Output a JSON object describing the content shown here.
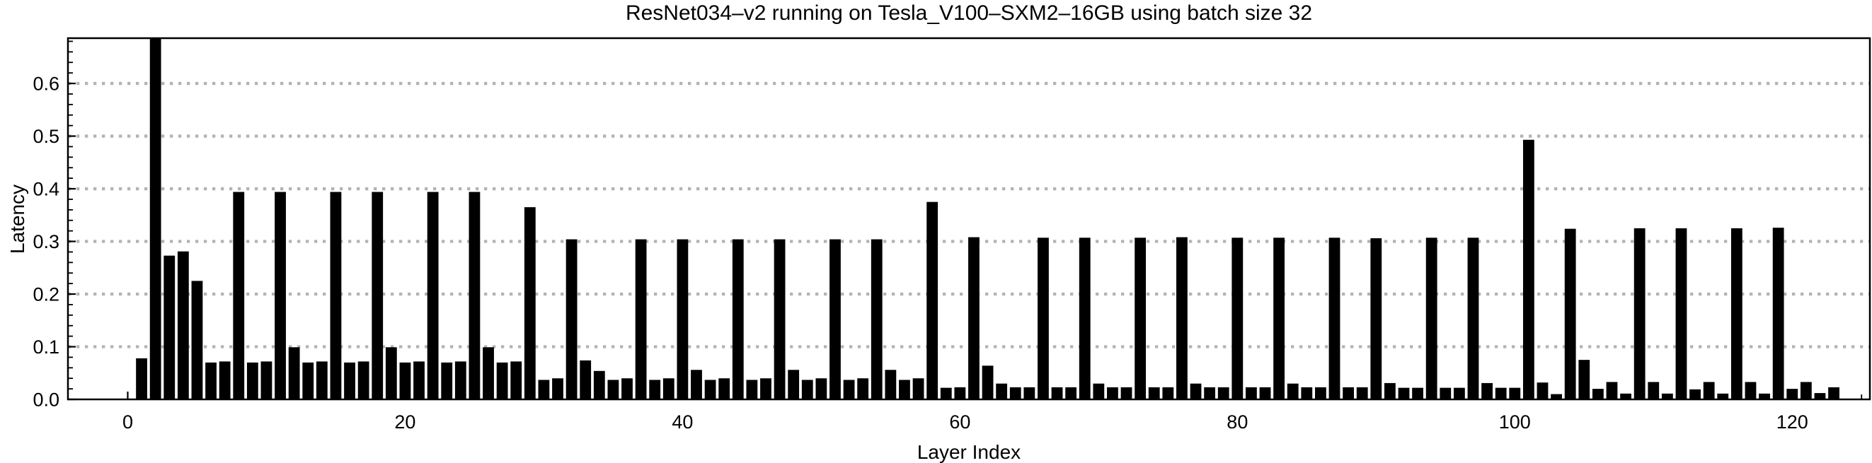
{
  "page": {
    "background": "#ffffff"
  },
  "chart_data": {
    "type": "bar",
    "title": "ResNet034–v2 running on Tesla_V100–SXM2–16GB using batch size 32",
    "xlabel": "Layer Index",
    "ylabel": "Latency",
    "bar_color": "#000000",
    "grid_color": "#b3b3b3",
    "frame_color": "#000000",
    "text_color": "#000000",
    "grid_style": "dotted-horizontal",
    "legend": null,
    "x_start": 1,
    "xlim": [
      -4.31,
      125.6
    ],
    "ylim": [
      0,
      0.686
    ],
    "xticks": [
      0,
      20,
      40,
      60,
      80,
      100,
      120
    ],
    "xtick_labels": [
      "0",
      "20",
      "40",
      "60",
      "80",
      "100",
      "120"
    ],
    "x_minor_step": 5,
    "yticks": [
      0.0,
      0.1,
      0.2,
      0.3,
      0.4,
      0.5,
      0.6
    ],
    "ytick_labels": [
      "0.0",
      "0.1",
      "0.2",
      "0.3",
      "0.4",
      "0.5",
      "0.6"
    ],
    "y_minor_step": 0.02,
    "values": [
      0.078,
      0.685,
      0.273,
      0.281,
      0.225,
      0.07,
      0.072,
      0.394,
      0.07,
      0.072,
      0.394,
      0.099,
      0.07,
      0.072,
      0.394,
      0.07,
      0.072,
      0.394,
      0.099,
      0.07,
      0.072,
      0.394,
      0.07,
      0.072,
      0.394,
      0.099,
      0.07,
      0.072,
      0.365,
      0.037,
      0.04,
      0.304,
      0.074,
      0.054,
      0.037,
      0.04,
      0.304,
      0.037,
      0.04,
      0.304,
      0.056,
      0.037,
      0.04,
      0.304,
      0.037,
      0.04,
      0.304,
      0.056,
      0.037,
      0.04,
      0.304,
      0.037,
      0.04,
      0.304,
      0.056,
      0.037,
      0.04,
      0.375,
      0.022,
      0.023,
      0.308,
      0.064,
      0.03,
      0.023,
      0.023,
      0.307,
      0.023,
      0.023,
      0.307,
      0.03,
      0.023,
      0.023,
      0.307,
      0.023,
      0.023,
      0.308,
      0.03,
      0.023,
      0.023,
      0.307,
      0.023,
      0.023,
      0.307,
      0.03,
      0.023,
      0.023,
      0.307,
      0.023,
      0.023,
      0.306,
      0.031,
      0.022,
      0.022,
      0.307,
      0.022,
      0.022,
      0.307,
      0.031,
      0.022,
      0.022,
      0.493,
      0.032,
      0.01,
      0.324,
      0.075,
      0.02,
      0.033,
      0.011,
      0.325,
      0.033,
      0.011,
      0.325,
      0.019,
      0.033,
      0.011,
      0.325,
      0.033,
      0.011,
      0.326,
      0.02,
      0.033,
      0.012,
      0.023
    ]
  }
}
